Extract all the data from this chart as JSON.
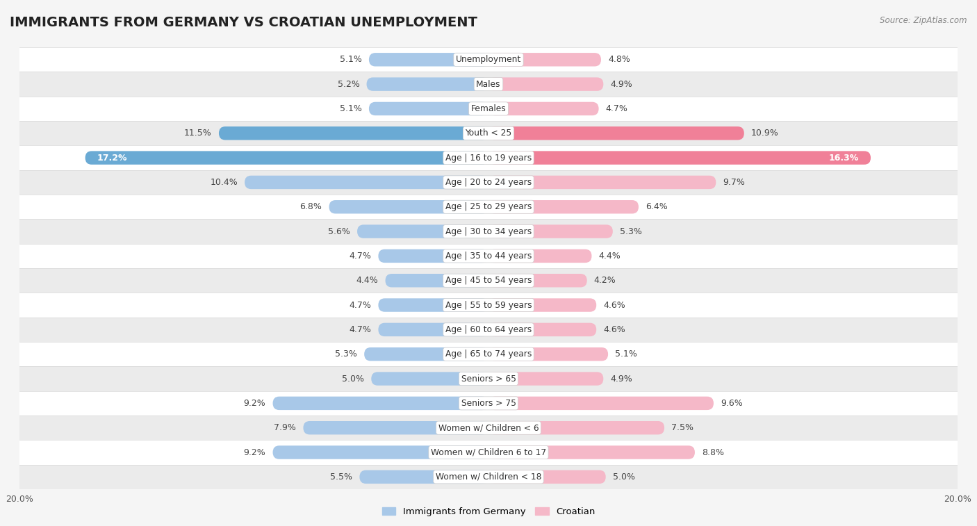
{
  "title": "IMMIGRANTS FROM GERMANY VS CROATIAN UNEMPLOYMENT",
  "source": "Source: ZipAtlas.com",
  "categories": [
    "Unemployment",
    "Males",
    "Females",
    "Youth < 25",
    "Age | 16 to 19 years",
    "Age | 20 to 24 years",
    "Age | 25 to 29 years",
    "Age | 30 to 34 years",
    "Age | 35 to 44 years",
    "Age | 45 to 54 years",
    "Age | 55 to 59 years",
    "Age | 60 to 64 years",
    "Age | 65 to 74 years",
    "Seniors > 65",
    "Seniors > 75",
    "Women w/ Children < 6",
    "Women w/ Children 6 to 17",
    "Women w/ Children < 18"
  ],
  "germany_values": [
    5.1,
    5.2,
    5.1,
    11.5,
    17.2,
    10.4,
    6.8,
    5.6,
    4.7,
    4.4,
    4.7,
    4.7,
    5.3,
    5.0,
    9.2,
    7.9,
    9.2,
    5.5
  ],
  "croatian_values": [
    4.8,
    4.9,
    4.7,
    10.9,
    16.3,
    9.7,
    6.4,
    5.3,
    4.4,
    4.2,
    4.6,
    4.6,
    5.1,
    4.9,
    9.6,
    7.5,
    8.8,
    5.0
  ],
  "germany_color_normal": "#a8c8e8",
  "croatian_color_normal": "#f5b8c8",
  "germany_color_highlight": "#6aaad4",
  "croatian_color_highlight": "#f08098",
  "row_bg_white": "#ffffff",
  "row_bg_gray": "#ebebeb",
  "separator_color": "#d8d8d8",
  "outer_bg": "#f5f5f5",
  "axis_limit": 20.0,
  "legend_germany": "Immigrants from Germany",
  "legend_croatian": "Croatian",
  "bar_height": 0.55,
  "label_fontsize": 9.0,
  "cat_fontsize": 8.8,
  "title_fontsize": 14,
  "source_fontsize": 8.5
}
